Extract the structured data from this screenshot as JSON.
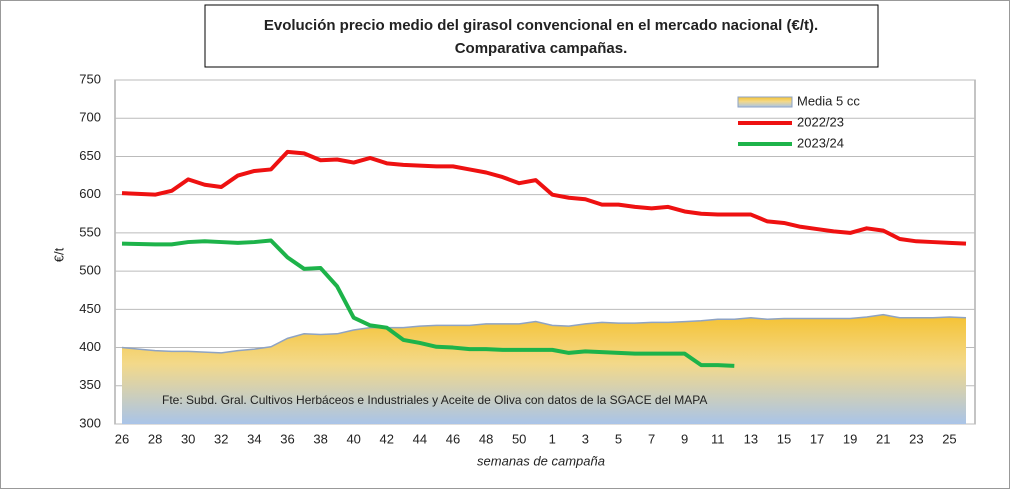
{
  "chart_data": {
    "type": "line",
    "title": [
      "Evolución precio medio del girasol convencional en el mercado nacional (€/t).",
      "Comparativa campañas."
    ],
    "ylabel": "€/t",
    "xlabel": "semanas de campaña",
    "annotation": "Fte: Subd. Gral. Cultivos Herbáceos e Industriales y Aceite de Oliva con datos de la SGACE del MAPA",
    "categories": [
      "26",
      null,
      "28",
      null,
      "30",
      null,
      "32",
      null,
      "34",
      null,
      "36",
      null,
      "38",
      null,
      "40",
      null,
      "42",
      null,
      "44",
      null,
      "46",
      null,
      "48",
      null,
      "50",
      null,
      "1",
      null,
      "3",
      null,
      "5",
      null,
      "7",
      null,
      "9",
      null,
      "11",
      null,
      "13",
      null,
      "15",
      null,
      "17",
      null,
      "19",
      null,
      "21",
      null,
      "23",
      null,
      "25",
      null
    ],
    "ylim": [
      300,
      750
    ],
    "yticks": [
      300,
      350,
      400,
      450,
      500,
      550,
      600,
      650,
      700,
      750
    ],
    "grid": true,
    "legend": "top-right",
    "series": [
      {
        "name": "Media 5 cc",
        "kind": "area",
        "color": "#f5c232",
        "values": [
          400,
          398,
          396,
          395,
          395,
          394,
          393,
          396,
          398,
          401,
          412,
          418,
          417,
          418,
          423,
          426,
          426,
          426,
          428,
          429,
          429,
          429,
          431,
          431,
          431,
          434,
          429,
          428,
          431,
          433,
          432,
          432,
          433,
          433,
          434,
          435,
          437,
          437,
          439,
          437,
          438,
          438,
          438,
          438,
          438,
          440,
          443,
          439,
          439,
          439,
          440,
          439
        ]
      },
      {
        "name": "2022/23",
        "kind": "line",
        "color": "#ee1111",
        "values": [
          602,
          601,
          600,
          605,
          620,
          613,
          610,
          625,
          631,
          633,
          656,
          654,
          645,
          646,
          642,
          648,
          641,
          639,
          638,
          637,
          637,
          633,
          629,
          623,
          615,
          619,
          600,
          596,
          594,
          587,
          587,
          584,
          582,
          584,
          578,
          575,
          574,
          574,
          574,
          565,
          563,
          558,
          555,
          552,
          550,
          556,
          553,
          542,
          539,
          538,
          537,
          536
        ]
      },
      {
        "name": "2023/24",
        "kind": "line",
        "color": "#1db34a",
        "values": [
          536,
          535.5,
          535,
          535,
          538,
          539,
          538,
          537,
          538,
          540,
          518,
          503,
          504,
          480,
          439,
          429,
          426,
          410,
          406,
          401,
          400,
          398,
          398,
          397,
          397,
          397,
          397,
          393,
          395,
          394,
          393,
          392,
          392,
          392,
          392,
          377,
          377,
          376,
          null,
          null,
          null,
          null,
          null,
          null,
          null,
          null,
          null,
          null,
          null,
          null,
          null,
          null
        ]
      }
    ]
  }
}
